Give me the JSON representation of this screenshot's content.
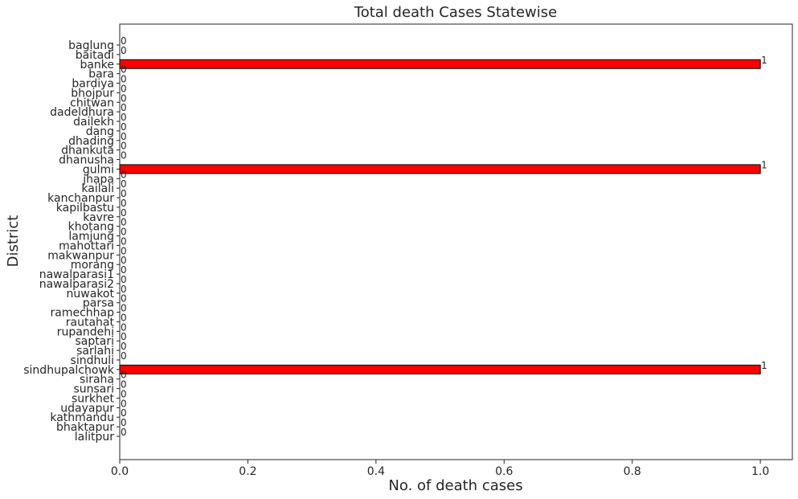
{
  "chart_data": {
    "type": "bar",
    "orientation": "horizontal",
    "title": "Total death Cases Statewise",
    "xlabel": "No. of death cases",
    "ylabel": "District",
    "categories": [
      "baglung",
      "baitadi",
      "banke",
      "bara",
      "bardiya",
      "bhojpur",
      "chitwan",
      "dadeldhura",
      "dailekh",
      "dang",
      "dhading",
      "dhankuta",
      "dhanusha",
      "gulmi",
      "jhapa",
      "kailali",
      "kanchanpur",
      "kapilbastu",
      "kavre",
      "khotang",
      "lamjung",
      "mahottari",
      "makwanpur",
      "morang",
      "nawalparasi1",
      "nawalparasi2",
      "nuwakot",
      "parsa",
      "ramechhap",
      "rautahat",
      "rupandehi",
      "saptari",
      "sarlahi",
      "sindhuli",
      "sindhupalchowk",
      "siraha",
      "sunsari",
      "surkhet",
      "udayapur",
      "kathmandu",
      "bhaktapur",
      "lalitpur"
    ],
    "values": [
      0,
      0,
      1,
      0,
      0,
      0,
      0,
      0,
      0,
      0,
      0,
      0,
      0,
      1,
      0,
      0,
      0,
      0,
      0,
      0,
      0,
      0,
      0,
      0,
      0,
      0,
      0,
      0,
      0,
      0,
      0,
      0,
      0,
      0,
      1,
      0,
      0,
      0,
      0,
      0,
      0,
      0
    ],
    "data_labels": [
      "0",
      "0",
      "1",
      "0",
      "0",
      "0",
      "0",
      "0",
      "0",
      "0",
      "0",
      "0",
      "0",
      "1",
      "0",
      "0",
      "0",
      "0",
      "0",
      "0",
      "0",
      "0",
      "0",
      "0",
      "0",
      "0",
      "0",
      "0",
      "0",
      "0",
      "0",
      "0",
      "0",
      "0",
      "1",
      "0",
      "0",
      "0",
      "0",
      "0",
      "0",
      "0"
    ],
    "xlim": [
      0,
      1.05
    ],
    "xticks": [
      "0.0",
      "0.2",
      "0.4",
      "0.6",
      "0.8",
      "1.0"
    ],
    "grid": false,
    "legend": "none",
    "colors": {
      "bar": "#ff0000",
      "bar_edge": "#000000",
      "axis": "#262626",
      "text": "#262626"
    }
  }
}
